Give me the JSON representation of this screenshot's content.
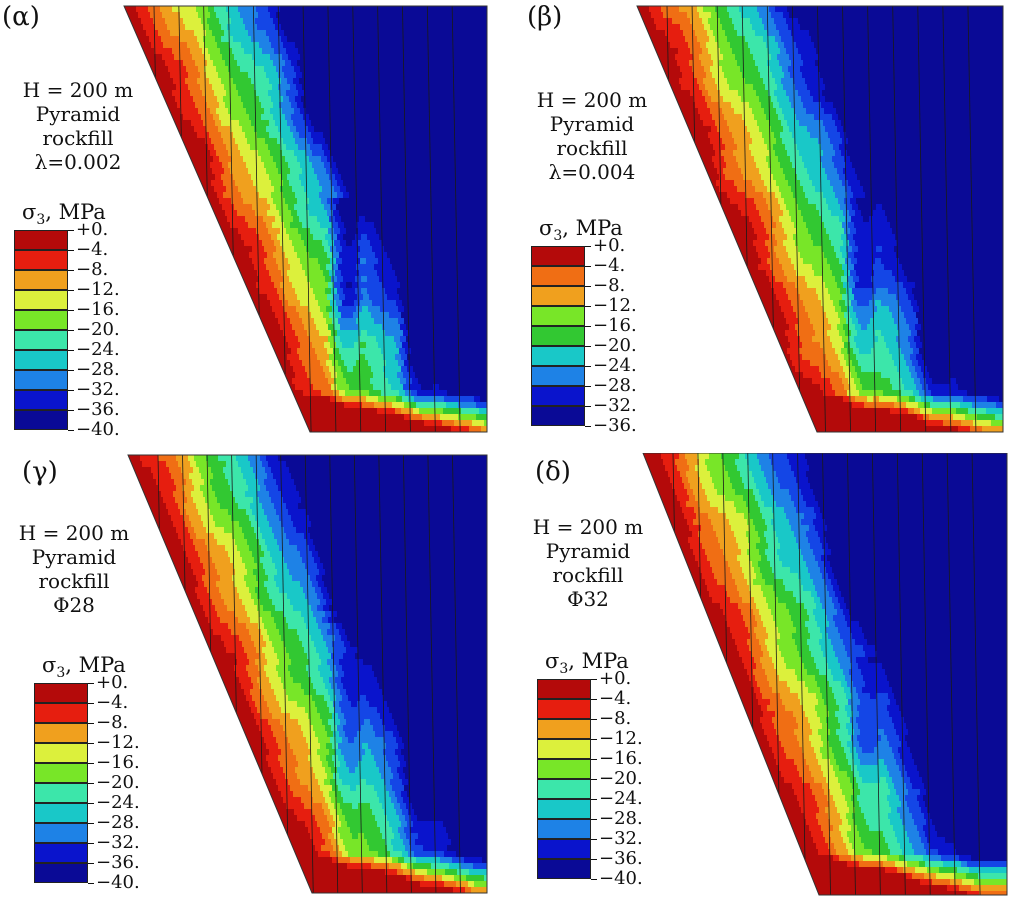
{
  "colors": {
    "scale": [
      "#b40a0a",
      "#e61e0f",
      "#f06e14",
      "#f0a01e",
      "#dcf03c",
      "#78e628",
      "#32c832",
      "#3ce6aa",
      "#19c8c8",
      "#1e82e6",
      "#1446e6",
      "#0a14cc",
      "#0a0a96"
    ]
  },
  "panels": [
    {
      "label": "(α)",
      "params": [
        "H = 200 m",
        "Pyramid",
        "rockfill",
        "λ=0.002"
      ],
      "legend": {
        "symbol": "σ",
        "sub": "3",
        "unit": ", MPa",
        "ticks": [
          "+0.",
          "−4.",
          "−8.",
          "−12.",
          "−16.",
          "−20.",
          "−24.",
          "−28.",
          "−32.",
          "−36.",
          "−40."
        ]
      }
    },
    {
      "label": "(β)",
      "params": [
        "H = 200 m",
        "Pyramid",
        "rockfill",
        "λ=0.004"
      ],
      "legend": {
        "symbol": "σ",
        "sub": "3",
        "unit": ", MPa",
        "ticks": [
          "+0.",
          "−4.",
          "−8.",
          "−12.",
          "−16.",
          "−20.",
          "−24.",
          "−28.",
          "−32.",
          "−36."
        ]
      }
    },
    {
      "label": "(γ)",
      "params": [
        "H = 200 m",
        "Pyramid",
        "rockfill",
        "Φ28"
      ],
      "legend": {
        "symbol": "σ",
        "sub": "3",
        "unit": ", MPa",
        "ticks": [
          "+0.",
          "−4.",
          "−8.",
          "−12.",
          "−16.",
          "−20.",
          "−24.",
          "−28.",
          "−32.",
          "−36.",
          "−40."
        ]
      }
    },
    {
      "label": "(δ)",
      "params": [
        "H = 200 m",
        "Pyramid",
        "rockfill",
        "Φ32"
      ],
      "legend": {
        "symbol": "σ",
        "sub": "3",
        "unit": ", MPa",
        "ticks": [
          "+0.",
          "−4.",
          "−8.",
          "−12.",
          "−16.",
          "−20.",
          "−24.",
          "−28.",
          "−32.",
          "−36.",
          "−40."
        ]
      }
    }
  ]
}
